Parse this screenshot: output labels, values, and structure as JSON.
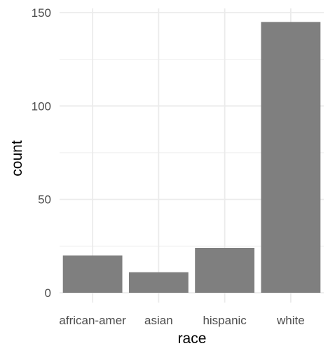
{
  "chart_data": {
    "type": "bar",
    "categories": [
      "african-amer",
      "asian",
      "hispanic",
      "white"
    ],
    "values": [
      20,
      11,
      24,
      145
    ],
    "xlabel": "race",
    "ylabel": "count",
    "ylim": [
      0,
      150
    ],
    "yticks": [
      0,
      50,
      100,
      150
    ],
    "yticks_labels": [
      "0",
      "50",
      "100",
      "150"
    ],
    "grid": true,
    "bar_color": "#7f7f7f",
    "grid_color": "#ebebeb",
    "theme": "minimal"
  }
}
